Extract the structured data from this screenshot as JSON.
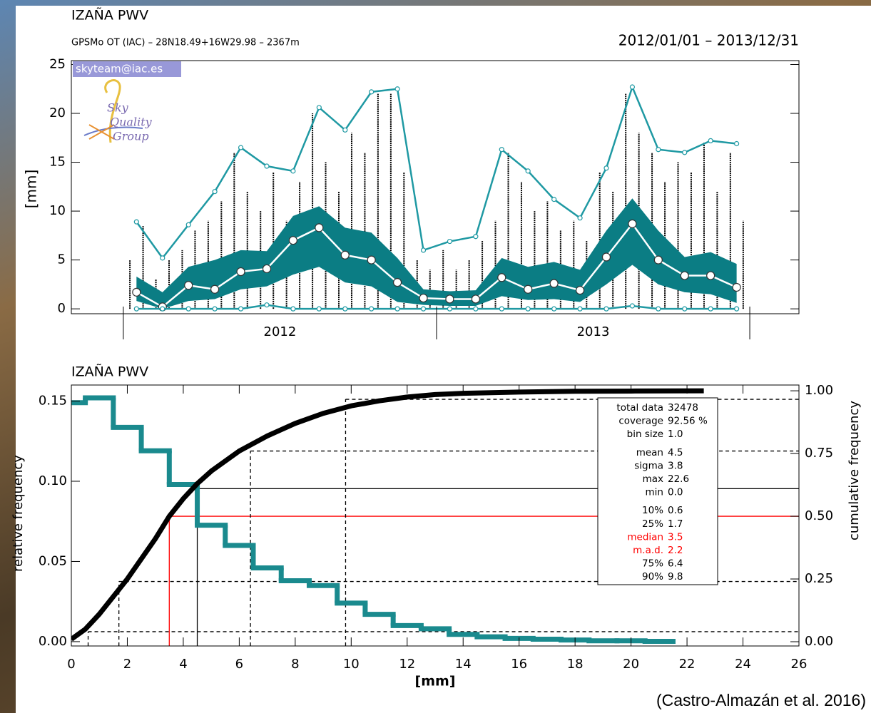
{
  "chart_data": [
    {
      "type": "timeseries",
      "title": "IZAÑA PWV",
      "subtitle": "GPSMo OT (IAC) – 28N18.49+16W29.98 – 2367m",
      "date_range": "2012/01/01 – 2013/12/31",
      "ylabel": "[mm]",
      "badge": "skyteam@iac.es",
      "logo_text": [
        "Sky",
        "Quality",
        "Group"
      ],
      "xlim": [
        2011.834,
        2014.157
      ],
      "xticks": [
        {
          "value": 2012.5,
          "label": "2012"
        },
        {
          "value": 2013.5,
          "label": "2013"
        }
      ],
      "year_ticks": [
        2012,
        2013,
        2014
      ],
      "ylim": [
        -0.5,
        25.4
      ],
      "yticks": [
        0,
        5,
        10,
        15,
        20,
        25
      ],
      "x": [
        2012.042,
        2012.125,
        2012.208,
        2012.292,
        2012.375,
        2012.458,
        2012.542,
        2012.625,
        2012.708,
        2012.792,
        2012.875,
        2012.958,
        2013.042,
        2013.125,
        2013.208,
        2013.292,
        2013.375,
        2013.458,
        2013.542,
        2013.625,
        2013.708,
        2013.792,
        2013.875,
        2013.958
      ],
      "band": {
        "color": "#0b7d84",
        "low": [
          0.8,
          0,
          0.8,
          1.0,
          2.0,
          2.3,
          3.5,
          4.3,
          2.7,
          2.3,
          0.7,
          0.4,
          0.3,
          0.3,
          1.3,
          0.9,
          1.0,
          0.7,
          2.5,
          4.5,
          2.5,
          1.7,
          1.5,
          0.6
        ],
        "high": [
          3.3,
          1.7,
          4.3,
          5.0,
          6.0,
          5.9,
          9.5,
          10.5,
          8.3,
          7.8,
          5.2,
          2.0,
          1.8,
          1.9,
          5.2,
          4.3,
          4.8,
          4.0,
          8.0,
          11.3,
          8.0,
          5.3,
          5.8,
          4.6
        ]
      },
      "series": [
        {
          "color": "#1f99a3",
          "marker": "small",
          "values": [
            8.9,
            5.2,
            8.6,
            12.0,
            16.5,
            14.6,
            14.1,
            20.6,
            18.3,
            22.2,
            22.5,
            6.0,
            6.9,
            7.4,
            16.3,
            14.1,
            11.2,
            9.3,
            14.4,
            22.7,
            16.3,
            16.0,
            17.2,
            16.9
          ]
        },
        {
          "color": "#ffffff",
          "marker": "large",
          "values": [
            1.7,
            0.2,
            2.4,
            2.0,
            3.8,
            4.1,
            7.0,
            8.3,
            5.5,
            5.0,
            2.7,
            1.1,
            1.0,
            1.0,
            3.2,
            2.0,
            2.6,
            1.9,
            5.3,
            8.7,
            5.0,
            3.4,
            3.4,
            2.2
          ]
        },
        {
          "color": "#1f99a3",
          "marker": "small",
          "values": [
            0,
            0,
            0,
            0,
            0,
            0.4,
            0,
            0,
            0,
            0,
            0,
            0,
            0,
            0,
            0,
            0,
            0,
            0,
            0,
            0.3,
            0,
            0,
            0,
            0
          ]
        }
      ],
      "spikes": {
        "color": "#000000",
        "x": [
          2012.021,
          2012.063,
          2012.104,
          2012.146,
          2012.188,
          2012.229,
          2012.271,
          2012.313,
          2012.354,
          2012.396,
          2012.438,
          2012.479,
          2012.521,
          2012.563,
          2012.604,
          2012.646,
          2012.688,
          2012.729,
          2012.771,
          2012.813,
          2012.854,
          2012.896,
          2012.938,
          2012.979,
          2013.021,
          2013.063,
          2013.104,
          2013.146,
          2013.188,
          2013.229,
          2013.271,
          2013.313,
          2013.354,
          2013.396,
          2013.438,
          2013.479,
          2013.521,
          2013.563,
          2013.604,
          2013.646,
          2013.688,
          2013.729,
          2013.771,
          2013.813,
          2013.854,
          2013.896,
          2013.938,
          2013.979
        ],
        "values": [
          5,
          8.5,
          3,
          5,
          6,
          8,
          9,
          11,
          16,
          12,
          10,
          14,
          9,
          13,
          20,
          15,
          12,
          18,
          16,
          22,
          22,
          14,
          5,
          4,
          6,
          4,
          5,
          7,
          9,
          16,
          13,
          10,
          11,
          8,
          9,
          7,
          14,
          12,
          22,
          18,
          16,
          13,
          15,
          14,
          17,
          12,
          16,
          9
        ]
      }
    },
    {
      "type": "histogram",
      "title": "IZAÑA PWV",
      "xlabel": "[mm]",
      "ylabel": "relative frequency",
      "y2label": "cumulative frequency",
      "color": "#1a8a8e",
      "bins": [
        -0.5,
        0.5,
        1.5,
        2.5,
        3.5,
        4.5,
        5.5,
        6.5,
        7.5,
        8.5,
        9.5,
        10.5,
        11.5,
        12.5,
        13.5,
        14.5,
        15.5,
        16.5,
        17.5,
        18.5,
        19.5,
        20.5,
        21.5
      ],
      "counts": [
        0.149,
        0.152,
        0.1336,
        0.119,
        0.098,
        0.0726,
        0.06,
        0.046,
        0.038,
        0.035,
        0.024,
        0.017,
        0.01,
        0.008,
        0.0045,
        0.003,
        0.002,
        0.0015,
        0.001,
        0.0005,
        0.0005,
        0.0002
      ],
      "xlim": [
        0,
        26
      ],
      "xticks": [
        0,
        2,
        4,
        6,
        8,
        10,
        12,
        14,
        16,
        18,
        20,
        22,
        24,
        26
      ],
      "ylim": [
        -0.0027,
        0.16
      ],
      "yticks": [
        {
          "value": 0,
          "label": "0.00"
        },
        0.05,
        {
          "value": 0.1,
          "label": "0.10"
        },
        0.15
      ],
      "y2lim": [
        -0.017,
        1.023
      ],
      "y2ticks": [
        {
          "value": 0,
          "label": "0.00"
        },
        0.25,
        {
          "value": 0.5,
          "label": "0.50"
        },
        0.75,
        {
          "value": 1,
          "label": "1.00"
        }
      ],
      "cumulative": {
        "axis": "y2",
        "color": "#000000",
        "x": [
          0,
          0.5,
          1,
          1.5,
          2,
          2.5,
          3,
          3.5,
          4,
          4.5,
          5,
          6,
          7,
          8,
          9,
          10,
          11,
          12,
          13,
          14,
          16,
          18,
          20,
          22.6
        ],
        "values": [
          0.01,
          0.05,
          0.11,
          0.18,
          0.25,
          0.33,
          0.41,
          0.5,
          0.57,
          0.63,
          0.68,
          0.76,
          0.82,
          0.87,
          0.91,
          0.94,
          0.96,
          0.975,
          0.985,
          0.99,
          0.995,
          0.998,
          0.999,
          1
        ]
      },
      "stats": [
        {
          "label": "total data",
          "value": 32478
        },
        {
          "label": "coverage",
          "value": "92.56 %"
        },
        {
          "label": "bin size",
          "value": "1.0"
        },
        {
          "label": "mean",
          "value": 4.5,
          "cum": 0.61,
          "line": "solid",
          "line_color": "#000000"
        },
        {
          "label": "sigma",
          "value": 3.8
        },
        {
          "label": "max",
          "value": 22.6
        },
        {
          "label": "min",
          "value": "0.0"
        },
        {
          "label": "10%",
          "value": 0.6,
          "cum": 0.04,
          "line": "dashed",
          "line_color": "#000000"
        },
        {
          "label": "25%",
          "value": 1.7,
          "cum": 0.24,
          "line": "dashed",
          "line_color": "#000000"
        },
        {
          "label": "median",
          "value": 3.5,
          "color": "#ff0000",
          "cum": 0.5,
          "line": "solid",
          "line_color": "#ff0000"
        },
        {
          "label": "m.a.d.",
          "value": 2.2,
          "color": "#ff0000"
        },
        {
          "label": "75%",
          "value": 6.4,
          "cum": 0.76,
          "line": "dashed",
          "line_color": "#000000"
        },
        {
          "label": "90%",
          "value": 9.8,
          "cum": 0.966,
          "line": "dashed",
          "line_color": "#000000"
        }
      ]
    }
  ],
  "caption": "(Castro-Almazán et al. 2016)"
}
